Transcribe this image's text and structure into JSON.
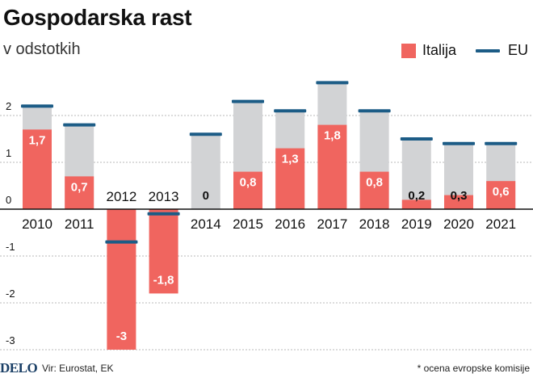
{
  "header": {
    "title": "Gospodarska rast",
    "subtitle": "v odstotkih"
  },
  "legend": {
    "italy_label": "Italija",
    "eu_label": "EU"
  },
  "colors": {
    "italy": "#f0655f",
    "eu_bar": "#d2d3d5",
    "eu_marker": "#1c5c86",
    "axis": "#111111",
    "grid": "#b8b8b8"
  },
  "footer": {
    "logo": "DELO",
    "source": "Vir: Eurostat, EK",
    "note": "* ocena evropske komisije"
  },
  "chart_data": {
    "type": "bar",
    "title": "Gospodarska rast",
    "subtitle": "v odstotkih",
    "categories": [
      "2010",
      "2011",
      "2012",
      "2013",
      "2014",
      "2015",
      "2016",
      "2017",
      "2018",
      "2019",
      "2020",
      "2021"
    ],
    "series": [
      {
        "name": "Italija",
        "values": [
          1.7,
          0.7,
          -3,
          -1.8,
          0,
          0.8,
          1.3,
          1.8,
          0.8,
          0.2,
          0.3,
          0.6
        ],
        "labels": [
          "1,7",
          "0,7",
          "-3",
          "-1,8",
          "0",
          "0,8",
          "1,3",
          "1,8",
          "0,8",
          "0,2",
          "0,3",
          "0,6"
        ]
      },
      {
        "name": "EU",
        "values": [
          2.2,
          1.8,
          -0.7,
          -0.1,
          1.6,
          2.3,
          2.1,
          2.7,
          2.1,
          1.5,
          1.4,
          1.4
        ]
      }
    ],
    "yticks": [
      {
        "value": 2,
        "label": "2"
      },
      {
        "value": 1,
        "label": "1"
      },
      {
        "value": 0,
        "label": "0"
      },
      {
        "value": -1,
        "label": "-1"
      },
      {
        "value": -2,
        "label": "-2"
      },
      {
        "value": -3,
        "label": "-3"
      }
    ],
    "ylim": [
      -3.1,
      3.0
    ],
    "grid": true,
    "legend_position": "top-right"
  }
}
